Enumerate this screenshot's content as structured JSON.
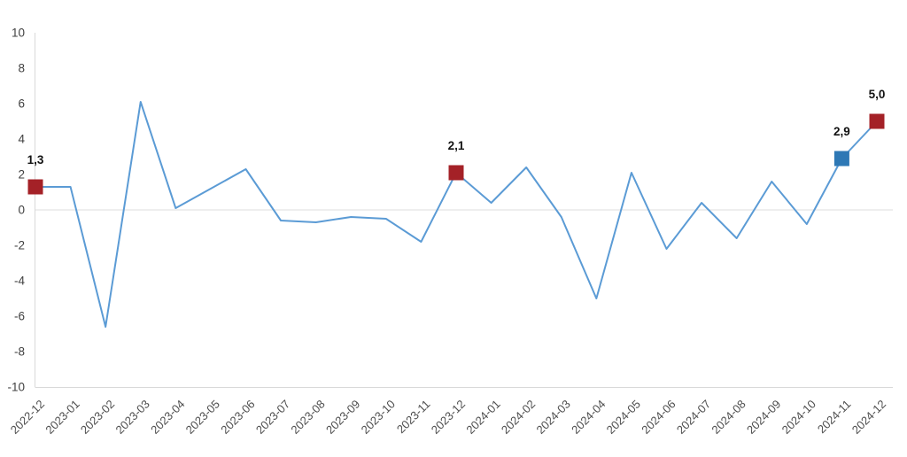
{
  "chart_data": {
    "type": "line",
    "title": "",
    "xlabel": "",
    "ylabel": "",
    "x": [
      "2022-12",
      "2023-01",
      "2023-02",
      "2023-03",
      "2023-04",
      "2023-05",
      "2023-06",
      "2023-07",
      "2023-08",
      "2023-09",
      "2023-10",
      "2023-11",
      "2023-12",
      "2024-01",
      "2024-02",
      "2024-03",
      "2024-04",
      "2024-05",
      "2024-06",
      "2024-07",
      "2024-08",
      "2024-09",
      "2024-10",
      "2024-11",
      "2024-12"
    ],
    "values": [
      1.3,
      1.3,
      -6.6,
      6.1,
      0.1,
      1.2,
      2.3,
      -0.6,
      -0.7,
      -0.4,
      -0.5,
      -1.8,
      2.1,
      0.4,
      2.4,
      -0.4,
      -5.0,
      2.1,
      -2.2,
      0.4,
      -1.6,
      1.6,
      -0.8,
      2.9,
      5.0
    ],
    "ylim": [
      -10,
      10
    ],
    "y_tick_labels": [
      "10",
      "8",
      "6",
      "4",
      "2",
      "0",
      "-2",
      "-4",
      "-6",
      "-8",
      "-10"
    ],
    "y_tick_values": [
      10,
      8,
      6,
      4,
      2,
      0,
      -2,
      -4,
      -6,
      -8,
      -10
    ],
    "grid": "zero line only",
    "legend": "none",
    "x_tick_rotation_deg": -45,
    "colors": {
      "line": "#5b9bd5",
      "axis": "#d9d9d9",
      "zero_gridline": "#dedede",
      "marker_red": "#a42127",
      "marker_blue": "#2e78b5",
      "y_tick_text": "#404040",
      "x_tick_text": "#4d4d4d",
      "data_label_text": "#121212"
    },
    "marked_points": [
      {
        "x": "2022-12",
        "value": 1.3,
        "label": "1,3",
        "color_key": "marker_red"
      },
      {
        "x": "2023-12",
        "value": 2.1,
        "label": "2,1",
        "color_key": "marker_red"
      },
      {
        "x": "2024-11",
        "value": 2.9,
        "label": "2,9",
        "color_key": "marker_blue"
      },
      {
        "x": "2024-12",
        "value": 5.0,
        "label": "5,0",
        "color_key": "marker_red"
      }
    ]
  }
}
